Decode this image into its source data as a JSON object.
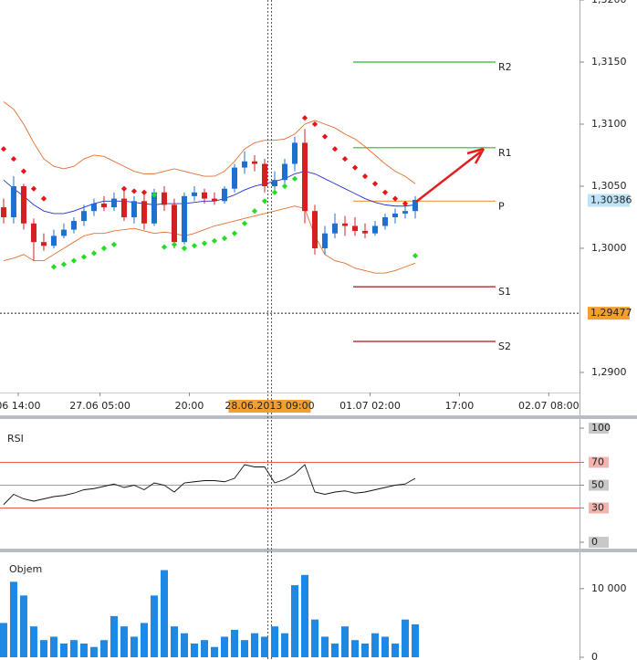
{
  "chart_data": [
    {
      "type": "candlestick",
      "xlim": [
        -0.36,
        57.36
      ],
      "xticks": [
        {
          "value": 1.45,
          "label": "06 14:00"
        },
        {
          "value": 9.6,
          "label": "27.06 05:00"
        },
        {
          "value": 18.5,
          "label": "20:00"
        },
        {
          "value": 36.5,
          "label": "01.07 02:00"
        },
        {
          "value": 45.4,
          "label": "17:00"
        },
        {
          "value": 54.3,
          "label": "02.07 08:00"
        }
      ],
      "ylim": [
        1.28838,
        1.32
      ],
      "yticks": [
        {
          "value": 1.32,
          "label": "1,3200"
        },
        {
          "value": 1.315,
          "label": "1,3150"
        },
        {
          "value": 1.31,
          "label": "1,3100"
        },
        {
          "value": 1.305,
          "label": "1,3050"
        },
        {
          "value": 1.3,
          "label": "1,3000"
        },
        {
          "value": 1.29,
          "label": "1,2900"
        }
      ],
      "up_color": "#1f6fd0",
      "down_color": "#d42020",
      "candles": [
        [
          1.3033,
          1.304,
          1.302,
          1.3025
        ],
        [
          1.3025,
          1.3058,
          1.302,
          1.305
        ],
        [
          1.305,
          1.3052,
          1.3015,
          1.302
        ],
        [
          1.302,
          1.3024,
          1.299,
          1.3005
        ],
        [
          1.3005,
          1.3012,
          1.2998,
          1.3002
        ],
        [
          1.3002,
          1.3015,
          1.3,
          1.301
        ],
        [
          1.301,
          1.302,
          1.3008,
          1.3015
        ],
        [
          1.3015,
          1.3025,
          1.3012,
          1.3022
        ],
        [
          1.3022,
          1.3035,
          1.3018,
          1.303
        ],
        [
          1.303,
          1.304,
          1.3026,
          1.3036
        ],
        [
          1.3036,
          1.3042,
          1.303,
          1.3033
        ],
        [
          1.3033,
          1.3045,
          1.303,
          1.304
        ],
        [
          1.304,
          1.3046,
          1.3022,
          1.3025
        ],
        [
          1.3025,
          1.3042,
          1.302,
          1.3038
        ],
        [
          1.3038,
          1.3046,
          1.3015,
          1.302
        ],
        [
          1.302,
          1.3048,
          1.3018,
          1.3045
        ],
        [
          1.3045,
          1.305,
          1.303,
          1.3035
        ],
        [
          1.3035,
          1.304,
          1.3,
          1.3005
        ],
        [
          1.3005,
          1.3045,
          1.3003,
          1.3042
        ],
        [
          1.3042,
          1.305,
          1.3038,
          1.3045
        ],
        [
          1.3045,
          1.3048,
          1.3036,
          1.304
        ],
        [
          1.304,
          1.3045,
          1.3035,
          1.3038
        ],
        [
          1.3038,
          1.305,
          1.3036,
          1.3048
        ],
        [
          1.3048,
          1.3068,
          1.3045,
          1.3065
        ],
        [
          1.3065,
          1.3078,
          1.306,
          1.307
        ],
        [
          1.307,
          1.3075,
          1.3062,
          1.3068
        ],
        [
          1.3068,
          1.3072,
          1.3045,
          1.305
        ],
        [
          1.305,
          1.3062,
          1.3046,
          1.3055
        ],
        [
          1.3055,
          1.3072,
          1.3052,
          1.3068
        ],
        [
          1.3068,
          1.309,
          1.3062,
          1.3085
        ],
        [
          1.3085,
          1.3096,
          1.302,
          1.303
        ],
        [
          1.303,
          1.3035,
          1.2995,
          1.3
        ],
        [
          1.3,
          1.3018,
          1.2995,
          1.3012
        ],
        [
          1.3012,
          1.3028,
          1.3008,
          1.302
        ],
        [
          1.302,
          1.3026,
          1.301,
          1.3018
        ],
        [
          1.3018,
          1.3025,
          1.301,
          1.3014
        ],
        [
          1.3014,
          1.302,
          1.3008,
          1.3012
        ],
        [
          1.3012,
          1.3022,
          1.301,
          1.3018
        ],
        [
          1.3018,
          1.3028,
          1.3015,
          1.3025
        ],
        [
          1.3025,
          1.3032,
          1.302,
          1.3028
        ],
        [
          1.3028,
          1.3035,
          1.3024,
          1.303
        ],
        [
          1.303,
          1.3042,
          1.3024,
          1.3039
        ]
      ],
      "lines": [
        {
          "color": "#e07030",
          "values": [
            1.3118,
            1.3112,
            1.31,
            1.3085,
            1.3072,
            1.3066,
            1.3064,
            1.3066,
            1.3072,
            1.3075,
            1.3074,
            1.307,
            1.3066,
            1.3062,
            1.306,
            1.306,
            1.3062,
            1.3064,
            1.3062,
            1.306,
            1.3058,
            1.3058,
            1.3062,
            1.307,
            1.308,
            1.3085,
            1.3087,
            1.3087,
            1.3088,
            1.3092,
            1.31,
            1.3103,
            1.31,
            1.3097,
            1.3092,
            1.3088,
            1.3082,
            1.3075,
            1.3068,
            1.3062,
            1.3058,
            1.3052
          ]
        },
        {
          "color": "#e07030",
          "values": [
            1.299,
            1.2992,
            1.2995,
            1.299,
            1.299,
            1.2995,
            1.3,
            1.3005,
            1.301,
            1.3012,
            1.3012,
            1.3014,
            1.3015,
            1.3016,
            1.3014,
            1.3012,
            1.3013,
            1.3012,
            1.301,
            1.3012,
            1.3015,
            1.3018,
            1.302,
            1.3022,
            1.3024,
            1.3026,
            1.3028,
            1.303,
            1.3032,
            1.3034,
            1.3032,
            1.301,
            1.2995,
            1.299,
            1.2988,
            1.2984,
            1.2982,
            1.298,
            1.298,
            1.2982,
            1.2985,
            1.2988
          ]
        },
        {
          "color": "#2230d0",
          "values": [
            1.3055,
            1.3048,
            1.3042,
            1.3035,
            1.303,
            1.3028,
            1.3028,
            1.303,
            1.3033,
            1.3036,
            1.3038,
            1.3038,
            1.3038,
            1.3037,
            1.3036,
            1.3035,
            1.3036,
            1.3036,
            1.3036,
            1.3037,
            1.3038,
            1.3038,
            1.304,
            1.3043,
            1.3047,
            1.305,
            1.3052,
            1.3054,
            1.3056,
            1.306,
            1.3062,
            1.306,
            1.3056,
            1.3052,
            1.3048,
            1.3044,
            1.304,
            1.3037,
            1.3035,
            1.3034,
            1.3034,
            1.3035
          ]
        }
      ],
      "sar": [
        1.308,
        1.3072,
        1.3062,
        1.3048,
        1.304,
        1.2985,
        1.2987,
        1.299,
        1.2993,
        1.2996,
        1.3,
        1.3003,
        1.3048,
        1.3046,
        1.3045,
        1.3043,
        1.3001,
        1.3003,
        1.3,
        1.3002,
        1.3004,
        1.3006,
        1.3008,
        1.3012,
        1.302,
        1.303,
        1.3038,
        1.3045,
        1.305,
        1.3056,
        1.3105,
        1.31,
        1.309,
        1.308,
        1.3072,
        1.3065,
        1.3058,
        1.3052,
        1.3045,
        1.304,
        1.3036,
        1.2994
      ],
      "sar_above_color": "#e8141a",
      "sar_below_color": "#22dd22",
      "pivots": [
        {
          "name": "R2",
          "value": 1.315,
          "color": "#2db82d"
        },
        {
          "name": "R1",
          "value": 1.3081,
          "color": "#2db82d"
        },
        {
          "name": "P",
          "value": 1.3038,
          "color": "#e89a3c"
        },
        {
          "name": "S1",
          "value": 1.2969,
          "color": "#a01818"
        },
        {
          "name": "S2",
          "value": 1.2925,
          "color": "#a01818"
        }
      ],
      "last_price": {
        "value": 1.30386,
        "label": "1,30386"
      },
      "crosshair": {
        "x": 26.5,
        "x_label": "28.06.2013 09:00",
        "y": 1.29477,
        "y_label": "1,29477"
      }
    },
    {
      "type": "line",
      "title": "RSI",
      "ylim": [
        -4.8,
        105.6
      ],
      "yticks": [
        100,
        70,
        50,
        30,
        0
      ],
      "ytick_colors": [
        "#c8c8c8",
        "#f2b4ae",
        "#c8c8c8",
        "#f2b4ae",
        "#c8c8c8"
      ],
      "hlines": [
        {
          "value": 70,
          "color": "#e06050"
        },
        {
          "value": 50,
          "color": "#a0a0a0"
        },
        {
          "value": 30,
          "color": "#e06050"
        }
      ],
      "color": "#111111",
      "values": [
        33,
        42,
        38,
        36,
        38,
        40,
        41,
        43,
        46,
        47,
        49,
        51,
        48,
        50,
        46,
        52,
        50,
        44,
        52,
        53,
        54,
        54,
        53,
        56,
        68,
        66,
        66,
        52,
        55,
        60,
        68,
        44,
        42,
        44,
        45,
        43,
        44,
        46,
        48,
        50,
        51,
        56
      ]
    },
    {
      "type": "bar",
      "title": "Objem",
      "ylim": [
        0,
        15300
      ],
      "yticks": [
        {
          "value": 10000,
          "label": "10 000"
        },
        0
      ],
      "color": "#1e88e5",
      "values": [
        5000,
        11000,
        9000,
        4500,
        2500,
        3000,
        2000,
        2500,
        2000,
        1500,
        2500,
        6000,
        4500,
        3000,
        5000,
        9000,
        12700,
        4500,
        3500,
        2000,
        2500,
        1500,
        3000,
        4000,
        2500,
        3500,
        3000,
        4500,
        3500,
        10500,
        12000,
        5500,
        3000,
        2000,
        4500,
        2500,
        2000,
        3500,
        3000,
        2000,
        5500,
        4800
      ]
    }
  ]
}
